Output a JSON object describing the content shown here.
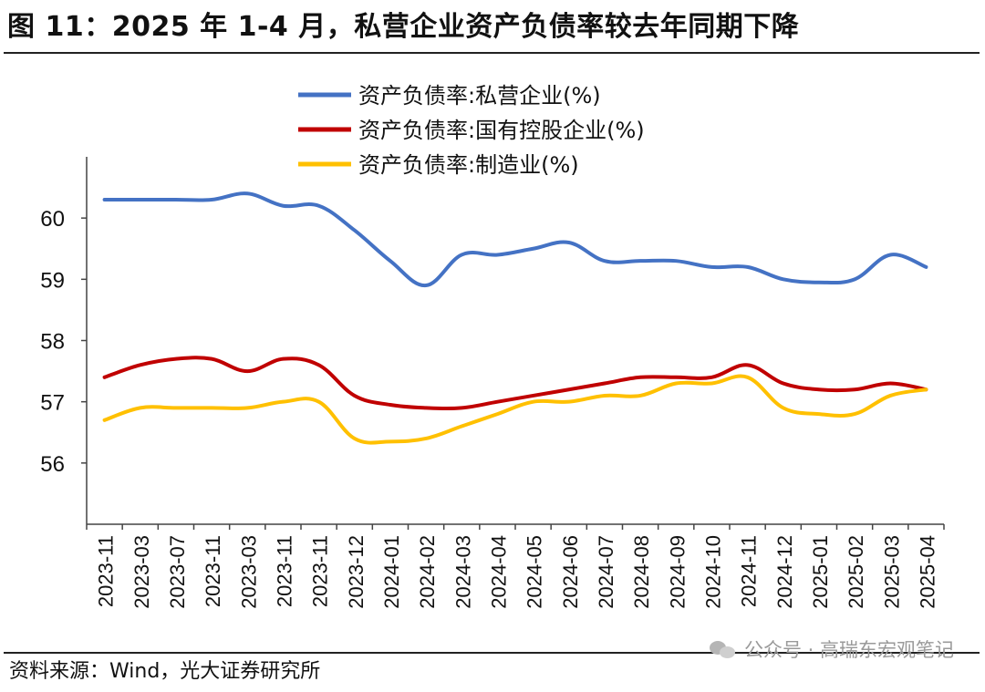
{
  "title": "图 11：2025 年 1-4 月，私营企业资产负债率较去年同期下降",
  "source": "资料来源：Wind，光大证券研究所",
  "watermark": "公众号 · 高瑞东宏观笔记",
  "chart_data": {
    "type": "line",
    "x": [
      "2023-11",
      "2023-03",
      "2023-07",
      "2023-11",
      "2023-03",
      "2023-11",
      "2023-11",
      "2023-12",
      "2024-01",
      "2024-02",
      "2024-03",
      "2024-04",
      "2024-05",
      "2024-06",
      "2024-07",
      "2024-08",
      "2024-09",
      "2024-10",
      "2024-11",
      "2024-12",
      "2025-01",
      "2025-02",
      "2025-03",
      "2025-04"
    ],
    "ylim": [
      55.0,
      61.0
    ],
    "yticks": [
      56,
      57,
      58,
      59,
      60
    ],
    "legend_position": "top-center",
    "series": [
      {
        "name": "资产负债率:私营企业(%)",
        "color": "#4472c4",
        "values": [
          60.3,
          60.3,
          60.3,
          60.3,
          60.4,
          60.2,
          60.2,
          59.8,
          59.3,
          58.9,
          59.4,
          59.4,
          59.5,
          59.6,
          59.3,
          59.3,
          59.3,
          59.2,
          59.2,
          59.0,
          58.95,
          59.0,
          59.4,
          59.2
        ]
      },
      {
        "name": "资产负债率:国有控股企业(%)",
        "color": "#c00000",
        "values": [
          57.4,
          57.6,
          57.7,
          57.7,
          57.5,
          57.7,
          57.6,
          57.1,
          56.95,
          56.9,
          56.9,
          57.0,
          57.1,
          57.2,
          57.3,
          57.4,
          57.4,
          57.4,
          57.6,
          57.3,
          57.2,
          57.2,
          57.3,
          57.2
        ]
      },
      {
        "name": "资产负债率:制造业(%)",
        "color": "#ffc000",
        "values": [
          56.7,
          56.9,
          56.9,
          56.9,
          56.9,
          57.0,
          57.0,
          56.4,
          56.35,
          56.4,
          56.6,
          56.8,
          57.0,
          57.0,
          57.1,
          57.1,
          57.3,
          57.3,
          57.4,
          56.9,
          56.8,
          56.8,
          57.1,
          57.2
        ]
      }
    ]
  }
}
